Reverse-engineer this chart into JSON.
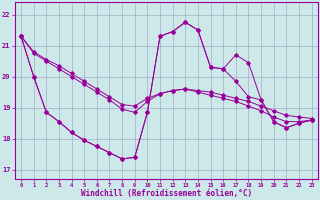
{
  "xlabel": "Windchill (Refroidissement éolien,°C)",
  "background_color": "#cce8e8",
  "grid_color": "#aaaacc",
  "line_color": "#990099",
  "x_ticks": [
    0,
    1,
    2,
    3,
    4,
    5,
    6,
    7,
    8,
    9,
    10,
    11,
    12,
    13,
    14,
    15,
    16,
    17,
    18,
    19,
    20,
    21,
    22,
    23
  ],
  "y_ticks": [
    17,
    18,
    19,
    20,
    21,
    22
  ],
  "ylim": [
    16.7,
    22.4
  ],
  "xlim": [
    -0.5,
    23.5
  ],
  "series": [
    [
      21.3,
      20.8,
      20.55,
      20.35,
      20.1,
      19.85,
      19.6,
      19.35,
      19.1,
      19.05,
      19.3,
      19.45,
      19.55,
      19.6,
      19.55,
      19.5,
      19.4,
      19.3,
      19.2,
      19.05,
      18.9,
      18.75,
      18.7,
      18.65
    ],
    [
      21.3,
      20.75,
      20.5,
      20.25,
      20.0,
      19.75,
      19.5,
      19.25,
      18.95,
      18.85,
      19.2,
      19.45,
      19.55,
      19.6,
      19.5,
      19.4,
      19.3,
      19.2,
      19.05,
      18.9,
      18.7,
      18.55,
      18.55,
      18.6
    ],
    [
      21.3,
      20.0,
      18.85,
      18.55,
      18.2,
      17.95,
      17.75,
      17.55,
      17.35,
      17.4,
      18.85,
      21.3,
      21.45,
      21.75,
      21.5,
      20.3,
      20.25,
      19.85,
      19.35,
      19.25,
      18.55,
      18.35,
      18.5,
      18.6
    ],
    [
      21.3,
      20.0,
      18.85,
      18.55,
      18.2,
      17.95,
      17.75,
      17.55,
      17.35,
      17.4,
      18.85,
      21.3,
      21.45,
      21.75,
      21.5,
      20.3,
      20.25,
      20.7,
      20.45,
      19.25,
      18.55,
      18.35,
      18.5,
      18.6
    ]
  ]
}
